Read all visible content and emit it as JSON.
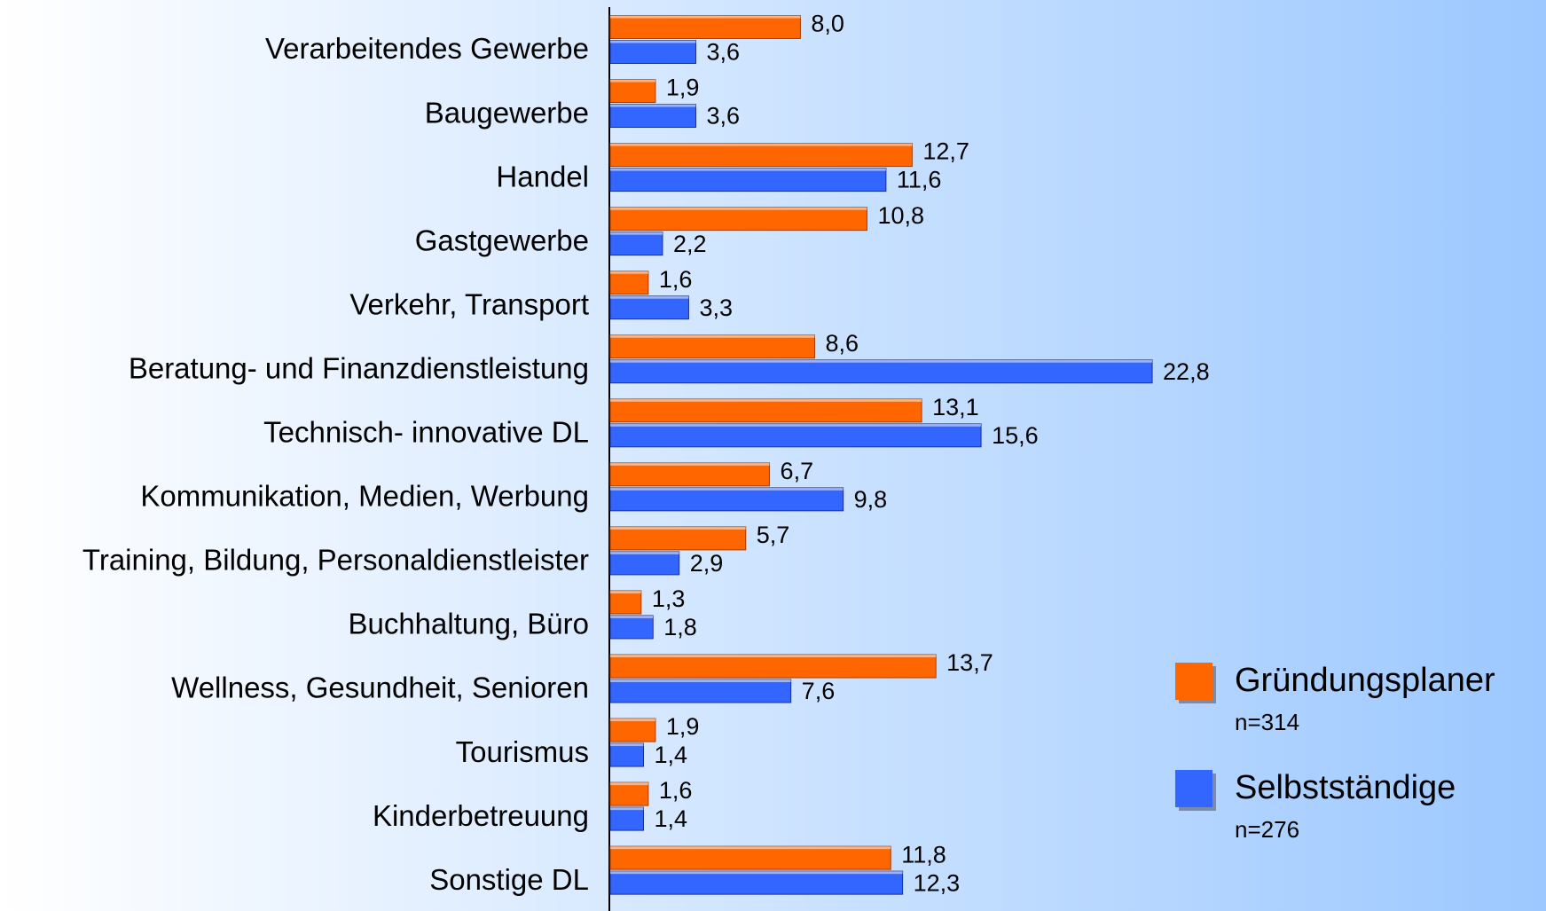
{
  "chart_data": {
    "type": "hbar",
    "categories": [
      "Verarbeitendes Gewerbe",
      "Baugewerbe",
      "Handel",
      "Gastgewerbe",
      "Verkehr, Transport",
      "Beratung- und Finanzdienstleistung",
      "Technisch- innovative DL",
      "Kommunikation, Medien, Werbung",
      "Training, Bildung, Personaldienstleister",
      "Buchhaltung, Büro",
      "Wellness, Gesundheit, Senioren",
      "Tourismus",
      "Kinderbetreuung",
      "Sonstige DL"
    ],
    "series": [
      {
        "name": "Gründungsplaner",
        "sample": "n=314",
        "color": "#ff6600",
        "values": [
          8.0,
          1.9,
          12.7,
          10.8,
          1.6,
          8.6,
          13.1,
          6.7,
          5.7,
          1.3,
          13.7,
          1.9,
          1.6,
          11.8
        ],
        "value_labels": [
          "8,0",
          "1,9",
          "12,7",
          "10,8",
          "1,6",
          "8,6",
          "13,1",
          "6,7",
          "5,7",
          "1,3",
          "13,7",
          "1,9",
          "1,6",
          "11,8"
        ]
      },
      {
        "name": "Selbstständige",
        "sample": "n=276",
        "color": "#3366ff",
        "values": [
          3.6,
          3.6,
          11.6,
          2.2,
          3.3,
          22.8,
          15.6,
          9.8,
          2.9,
          1.8,
          7.6,
          1.4,
          1.4,
          12.3
        ],
        "value_labels": [
          "3,6",
          "3,6",
          "11,6",
          "2,2",
          "3,3",
          "22,8",
          "15,6",
          "9,8",
          "2,9",
          "1,8",
          "7,6",
          "1,4",
          "1,4",
          "12,3"
        ]
      }
    ],
    "xlim": [
      0,
      25
    ],
    "legend": "bottom-right"
  }
}
